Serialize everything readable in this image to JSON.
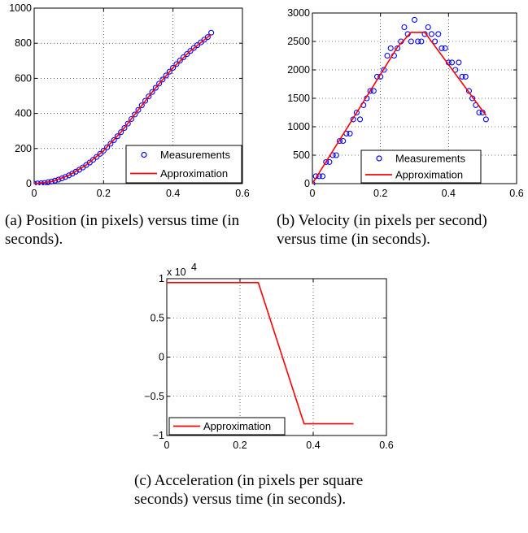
{
  "captions": {
    "a": "(a) Position (in pixels) versus time (in seconds).",
    "b": "(b) Velocity (in pixels per second) versus time (in seconds).",
    "c": "(c) Acceleration (in pixels per square seconds) versus time (in seconds)."
  },
  "colors": {
    "measurements": "#0000ff",
    "approximation": "#ff0000"
  },
  "chart_data": [
    {
      "id": "a",
      "type": "scatter",
      "xlim": [
        0,
        0.6
      ],
      "ylim": [
        0,
        1000
      ],
      "xticks": [
        "0",
        "0.2",
        "0.4",
        "0.6"
      ],
      "yticks": [
        "0",
        "200",
        "400",
        "600",
        "800",
        "1000"
      ],
      "grid": true,
      "legend": {
        "position": "bottom-right",
        "entries": [
          "Measurements",
          "Approximation"
        ]
      },
      "series": [
        {
          "name": "Measurements",
          "marker": "circle",
          "x": [
            0.0,
            0.01,
            0.02,
            0.03,
            0.04,
            0.05,
            0.06,
            0.07,
            0.08,
            0.09,
            0.1,
            0.11,
            0.12,
            0.13,
            0.14,
            0.15,
            0.16,
            0.17,
            0.18,
            0.19,
            0.2,
            0.21,
            0.22,
            0.23,
            0.24,
            0.25,
            0.26,
            0.27,
            0.28,
            0.29,
            0.3,
            0.31,
            0.32,
            0.33,
            0.34,
            0.35,
            0.36,
            0.37,
            0.38,
            0.39,
            0.4,
            0.41,
            0.42,
            0.43,
            0.44,
            0.45,
            0.46,
            0.47,
            0.48,
            0.49,
            0.5,
            0.51
          ],
          "y": [
            0,
            1,
            2,
            4,
            8,
            12,
            17,
            23,
            30,
            38,
            47,
            57,
            68,
            79,
            92,
            106,
            120,
            136,
            152,
            170,
            188,
            207,
            227,
            248,
            270,
            293,
            317,
            342,
            368,
            394,
            420,
            446,
            472,
            497,
            522,
            546,
            570,
            593,
            616,
            638,
            660,
            681,
            701,
            720,
            738,
            756,
            773,
            789,
            805,
            820,
            835,
            860
          ]
        },
        {
          "name": "Approximation",
          "marker": "line",
          "x": [
            0.0,
            0.05,
            0.1,
            0.15,
            0.2,
            0.25,
            0.3,
            0.35,
            0.4,
            0.45,
            0.5,
            0.51
          ],
          "y": [
            0,
            12,
            47,
            106,
            188,
            293,
            420,
            546,
            660,
            756,
            835,
            850
          ]
        }
      ]
    },
    {
      "id": "b",
      "type": "scatter",
      "xlim": [
        0,
        0.6
      ],
      "ylim": [
        0,
        3000
      ],
      "xticks": [
        "0",
        "0.2",
        "0.4",
        "0.6"
      ],
      "yticks": [
        "0",
        "500",
        "1000",
        "1500",
        "2000",
        "2500",
        "3000"
      ],
      "grid": true,
      "legend": {
        "position": "bottom-right",
        "entries": [
          "Measurements",
          "Approximation"
        ]
      },
      "series": [
        {
          "name": "Measurements",
          "marker": "circle",
          "x": [
            0.0,
            0.01,
            0.02,
            0.03,
            0.04,
            0.05,
            0.06,
            0.07,
            0.08,
            0.09,
            0.1,
            0.11,
            0.12,
            0.13,
            0.14,
            0.15,
            0.16,
            0.17,
            0.18,
            0.19,
            0.2,
            0.21,
            0.22,
            0.23,
            0.24,
            0.25,
            0.26,
            0.27,
            0.28,
            0.29,
            0.3,
            0.31,
            0.32,
            0.33,
            0.34,
            0.35,
            0.36,
            0.37,
            0.38,
            0.39,
            0.4,
            0.41,
            0.42,
            0.43,
            0.44,
            0.45,
            0.46,
            0.47,
            0.48,
            0.49,
            0.5,
            0.51
          ],
          "y": [
            0,
            130,
            130,
            130,
            380,
            380,
            500,
            500,
            750,
            750,
            880,
            880,
            1130,
            1250,
            1130,
            1380,
            1500,
            1630,
            1630,
            1880,
            1880,
            2000,
            2250,
            2380,
            2250,
            2380,
            2500,
            2750,
            2630,
            2500,
            2880,
            2500,
            2500,
            2630,
            2750,
            2630,
            2500,
            2630,
            2380,
            2380,
            2130,
            2130,
            2000,
            2130,
            1880,
            1880,
            1630,
            1500,
            1380,
            1250,
            1250,
            1130
          ]
        },
        {
          "name": "Approximation",
          "marker": "line",
          "x": [
            0.0,
            0.25,
            0.29,
            0.33,
            0.51
          ],
          "y": [
            0,
            2400,
            2660,
            2660,
            1200
          ]
        }
      ]
    },
    {
      "id": "c",
      "type": "line",
      "xlim": [
        0,
        0.6
      ],
      "ylim": [
        -1,
        1
      ],
      "xticks": [
        "0",
        "0.2",
        "0.4",
        "0.6"
      ],
      "yticks": [
        "−1",
        "−0.5",
        "0",
        "0.5",
        "1"
      ],
      "exponent_label": "x 10",
      "exponent_power": "4",
      "grid": true,
      "legend": {
        "position": "bottom-left",
        "entries": [
          "Approximation"
        ]
      },
      "series": [
        {
          "name": "Approximation",
          "marker": "line",
          "x": [
            0.0,
            0.25,
            0.375,
            0.51
          ],
          "y": [
            0.95,
            0.95,
            -0.85,
            -0.85
          ]
        }
      ]
    }
  ]
}
